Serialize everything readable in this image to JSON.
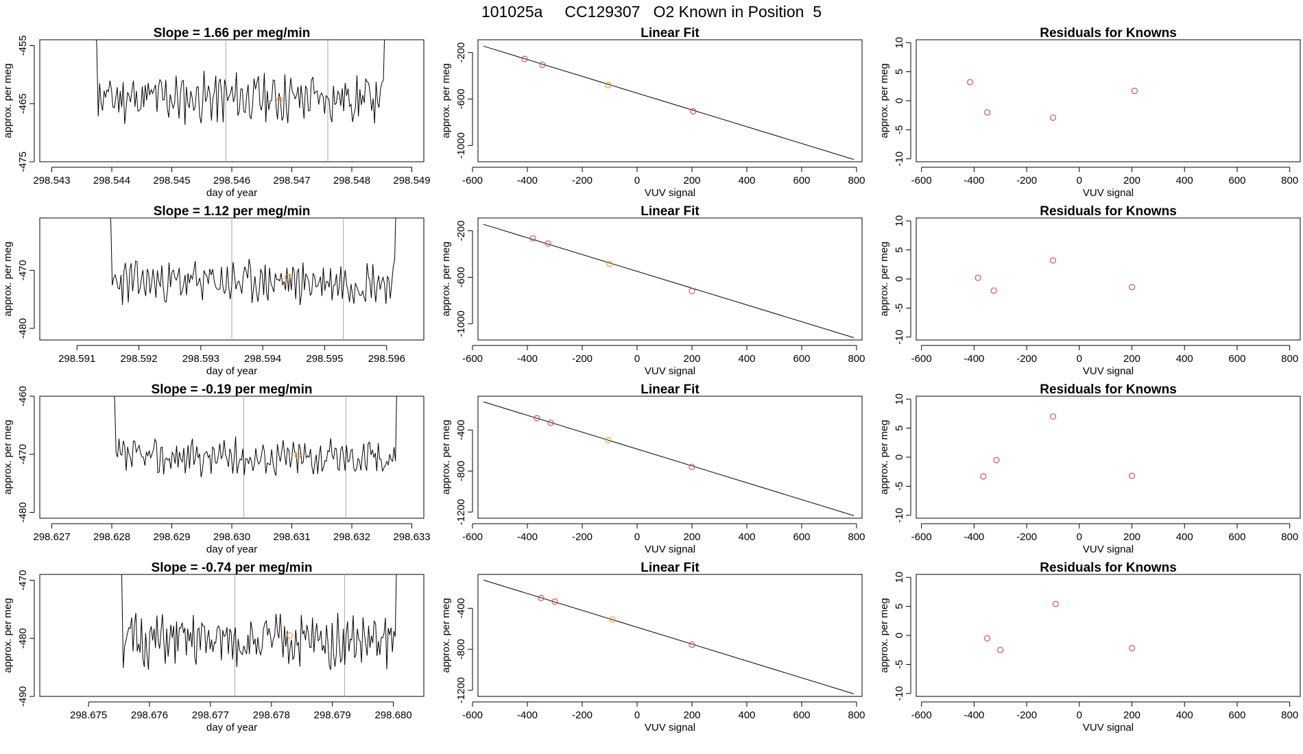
{
  "figure": {
    "title": "101025a     CC129307   O2 Known in Position  5"
  },
  "chart_data": [
    {
      "type": "line",
      "row": 1,
      "panel": "timeseries",
      "title": "Slope =  1.66  per meg/min",
      "xlabel": "day of year",
      "ylabel": "approx. per meg",
      "xlim": [
        298.5428,
        298.5492
      ],
      "ylim": [
        -475,
        -454
      ],
      "xticks": [
        298.543,
        298.544,
        298.545,
        298.546,
        298.547,
        298.548,
        298.549
      ],
      "xtick_labels": [
        "298.543",
        "298.544",
        "298.545",
        "298.546",
        "298.547",
        "298.548",
        "298.549"
      ],
      "yticks": [
        -455,
        -465,
        -475
      ],
      "ytick_labels": [
        "-455",
        "-465",
        "-475"
      ],
      "vlines": [
        298.5459,
        298.5476
      ],
      "x_start": 298.5437,
      "x_end": 298.5486,
      "center": -464,
      "amplitude": 3.5,
      "seed": 11,
      "marker": {
        "x": 298.5468,
        "y": -464.3
      }
    },
    {
      "type": "scatter",
      "row": 1,
      "panel": "fit",
      "title": "Linear Fit",
      "xlabel": "VUV signal",
      "ylabel": "approx. per meg",
      "xlim": [
        -580,
        820
      ],
      "ylim": [
        -1140,
        -90
      ],
      "xticks": [
        -600,
        -400,
        -200,
        0,
        200,
        400,
        600,
        800
      ],
      "xtick_labels": [
        "-600",
        "-400",
        "-200",
        "0",
        "200",
        "400",
        "600",
        "800"
      ],
      "yticks": [
        -200,
        -600,
        -1000
      ],
      "ytick_labels": [
        "-200",
        "-600",
        "-1000"
      ],
      "line": {
        "x": [
          -560,
          790
        ],
        "y": [
          -145,
          -1120
        ]
      },
      "points": [
        {
          "x": -410,
          "y": -255,
          "color": "#d9534f"
        },
        {
          "x": -345,
          "y": -305,
          "color": "#d9534f"
        },
        {
          "x": -105,
          "y": -480,
          "color": "#f0a030"
        },
        {
          "x": 205,
          "y": -705,
          "color": "#d9534f"
        }
      ]
    },
    {
      "type": "scatter",
      "row": 1,
      "panel": "residuals",
      "title": "Residuals for Knowns",
      "xlabel": "VUV signal",
      "ylabel": "approx. per meg",
      "xlim": [
        -620,
        840
      ],
      "ylim": [
        -10.5,
        10.5
      ],
      "xticks": [
        -600,
        -400,
        -200,
        0,
        200,
        400,
        600,
        800
      ],
      "xtick_labels": [
        "-600",
        "-400",
        "-200",
        "0",
        "200",
        "400",
        "600",
        "800"
      ],
      "yticks": [
        10,
        5,
        0,
        -5,
        -10
      ],
      "ytick_labels": [
        "10",
        "5",
        "0",
        "-5",
        "-10"
      ],
      "points": [
        {
          "x": -415,
          "y": 3.2,
          "color": "#d9534f"
        },
        {
          "x": -350,
          "y": -2.0,
          "color": "#d9534f"
        },
        {
          "x": -100,
          "y": -2.9,
          "color": "#d9534f"
        },
        {
          "x": 210,
          "y": 1.7,
          "color": "#d9534f"
        }
      ]
    },
    {
      "type": "line",
      "row": 2,
      "panel": "timeseries",
      "title": "Slope =  1.12  per meg/min",
      "xlabel": "day of year",
      "ylabel": "approx. per meg",
      "xlim": [
        298.5904,
        298.5966
      ],
      "ylim": [
        -482,
        -461
      ],
      "xticks": [
        298.591,
        298.592,
        298.593,
        298.594,
        298.595,
        298.596
      ],
      "xtick_labels": [
        "298.591",
        "298.592",
        "298.593",
        "298.594",
        "298.595",
        "298.596"
      ],
      "yticks": [
        -470,
        -480
      ],
      "ytick_labels": [
        "-470",
        "-480"
      ],
      "vlines": [
        298.5935,
        298.5953
      ],
      "x_start": 298.5915,
      "x_end": 298.5962,
      "center": -472,
      "amplitude": 3.0,
      "seed": 23,
      "marker": {
        "x": 298.5944,
        "y": -471.2
      }
    },
    {
      "type": "scatter",
      "row": 2,
      "panel": "fit",
      "title": "Linear Fit",
      "xlabel": "VUV signal",
      "ylabel": "approx. per meg",
      "xlim": [
        -580,
        820
      ],
      "ylim": [
        -1140,
        -90
      ],
      "xticks": [
        -600,
        -400,
        -200,
        0,
        200,
        400,
        600,
        800
      ],
      "xtick_labels": [
        "-600",
        "-400",
        "-200",
        "0",
        "200",
        "400",
        "600",
        "800"
      ],
      "yticks": [
        -200,
        -600,
        -1000
      ],
      "ytick_labels": [
        "-200",
        "-600",
        "-1000"
      ],
      "line": {
        "x": [
          -560,
          790
        ],
        "y": [
          -145,
          -1120
        ]
      },
      "points": [
        {
          "x": -380,
          "y": -265,
          "color": "#d9534f"
        },
        {
          "x": -325,
          "y": -310,
          "color": "#d9534f"
        },
        {
          "x": -100,
          "y": -485,
          "color": "#f0a030"
        },
        {
          "x": 200,
          "y": -720,
          "color": "#d9534f"
        }
      ]
    },
    {
      "type": "scatter",
      "row": 2,
      "panel": "residuals",
      "title": "Residuals for Knowns",
      "xlabel": "VUV signal",
      "ylabel": "approx. per meg",
      "xlim": [
        -620,
        840
      ],
      "ylim": [
        -10.5,
        10.5
      ],
      "xticks": [
        -600,
        -400,
        -200,
        0,
        200,
        400,
        600,
        800
      ],
      "xtick_labels": [
        "-600",
        "-400",
        "-200",
        "0",
        "200",
        "400",
        "600",
        "800"
      ],
      "yticks": [
        10,
        5,
        0,
        -5,
        -10
      ],
      "ytick_labels": [
        "10",
        "5",
        "0",
        "-5",
        "-10"
      ],
      "points": [
        {
          "x": -385,
          "y": 0.2,
          "color": "#d9534f"
        },
        {
          "x": -325,
          "y": -2.0,
          "color": "#d9534f"
        },
        {
          "x": -100,
          "y": 3.2,
          "color": "#d9534f"
        },
        {
          "x": 200,
          "y": -1.4,
          "color": "#d9534f"
        }
      ]
    },
    {
      "type": "line",
      "row": 3,
      "panel": "timeseries",
      "title": "Slope =  -0.19  per meg/min",
      "xlabel": "day of year",
      "ylabel": "approx. per meg",
      "xlim": [
        298.6268,
        298.6332
      ],
      "ylim": [
        -481,
        -460
      ],
      "xticks": [
        298.627,
        298.628,
        298.629,
        298.63,
        298.631,
        298.632,
        298.633
      ],
      "xtick_labels": [
        "298.627",
        "298.628",
        "298.629",
        "298.630",
        "298.631",
        "298.632",
        "298.633"
      ],
      "yticks": [
        -460,
        -470,
        -480
      ],
      "ytick_labels": [
        "-460",
        "-470",
        "-480"
      ],
      "vlines": [
        298.6302,
        298.6319
      ],
      "x_start": 298.628,
      "x_end": 298.6328,
      "center": -470.5,
      "amplitude": 2.6,
      "seed": 37,
      "marker": {
        "x": 298.6311,
        "y": -470.2
      }
    },
    {
      "type": "scatter",
      "row": 3,
      "panel": "fit",
      "title": "Linear Fit",
      "xlabel": "VUV signal",
      "ylabel": "approx. per meg",
      "xlim": [
        -580,
        820
      ],
      "ylim": [
        -1260,
        -70
      ],
      "xticks": [
        -600,
        -400,
        -200,
        0,
        200,
        400,
        600,
        800
      ],
      "xtick_labels": [
        "-600",
        "-400",
        "-200",
        "0",
        "200",
        "400",
        "600",
        "800"
      ],
      "yticks": [
        -400,
        -800,
        -1200
      ],
      "ytick_labels": [
        "-400",
        "-800",
        "-1200"
      ],
      "line": {
        "x": [
          -560,
          790
        ],
        "y": [
          -125,
          -1235
        ]
      },
      "points": [
        {
          "x": -365,
          "y": -285,
          "color": "#d9534f"
        },
        {
          "x": -315,
          "y": -330,
          "color": "#d9534f"
        },
        {
          "x": -105,
          "y": -500,
          "color": "#f0a030"
        },
        {
          "x": 200,
          "y": -760,
          "color": "#d9534f"
        }
      ]
    },
    {
      "type": "scatter",
      "row": 3,
      "panel": "residuals",
      "title": "Residuals for Knowns",
      "xlabel": "VUV signal",
      "ylabel": "approx. per meg",
      "xlim": [
        -620,
        840
      ],
      "ylim": [
        -10.5,
        10.5
      ],
      "xticks": [
        -600,
        -400,
        -200,
        0,
        200,
        400,
        600,
        800
      ],
      "xtick_labels": [
        "-600",
        "-400",
        "-200",
        "0",
        "200",
        "400",
        "600",
        "800"
      ],
      "yticks": [
        10,
        5,
        0,
        -5,
        -10
      ],
      "ytick_labels": [
        "10",
        "5",
        "0",
        "-5",
        "-10"
      ],
      "points": [
        {
          "x": -365,
          "y": -3.3,
          "color": "#d9534f"
        },
        {
          "x": -315,
          "y": -0.5,
          "color": "#d9534f"
        },
        {
          "x": -100,
          "y": 7.0,
          "color": "#d9534f"
        },
        {
          "x": 200,
          "y": -3.2,
          "color": "#d9534f"
        }
      ]
    },
    {
      "type": "line",
      "row": 4,
      "panel": "timeseries",
      "title": "Slope =  -0.74  per meg/min",
      "xlabel": "day of year",
      "ylabel": "approx. per meg",
      "xlim": [
        298.6742,
        298.6805
      ],
      "ylim": [
        -490,
        -469
      ],
      "xticks": [
        298.675,
        298.676,
        298.677,
        298.678,
        298.679,
        298.68
      ],
      "xtick_labels": [
        "298.675",
        "298.676",
        "298.677",
        "298.678",
        "298.679",
        "298.680"
      ],
      "yticks": [
        -470,
        -480,
        -490
      ],
      "ytick_labels": [
        "-470",
        "-480",
        "-490"
      ],
      "vlines": [
        298.6774,
        298.6792
      ],
      "x_start": 298.6755,
      "x_end": 298.6801,
      "center": -480.5,
      "amplitude": 3.8,
      "seed": 51,
      "marker": {
        "x": 298.6783,
        "y": -479.5
      }
    },
    {
      "type": "scatter",
      "row": 4,
      "panel": "fit",
      "title": "Linear Fit",
      "xlabel": "VUV signal",
      "ylabel": "approx. per meg",
      "xlim": [
        -580,
        820
      ],
      "ylim": [
        -1260,
        -70
      ],
      "xticks": [
        -600,
        -400,
        -200,
        0,
        200,
        400,
        600,
        800
      ],
      "xtick_labels": [
        "-600",
        "-400",
        "-200",
        "0",
        "200",
        "400",
        "600",
        "800"
      ],
      "yticks": [
        -400,
        -800,
        -1200
      ],
      "ytick_labels": [
        "-400",
        "-800",
        "-1200"
      ],
      "line": {
        "x": [
          -560,
          790
        ],
        "y": [
          -125,
          -1235
        ]
      },
      "points": [
        {
          "x": -350,
          "y": -300,
          "color": "#d9534f"
        },
        {
          "x": -300,
          "y": -335,
          "color": "#d9534f"
        },
        {
          "x": -90,
          "y": -510,
          "color": "#f0a030"
        },
        {
          "x": 200,
          "y": -755,
          "color": "#d9534f"
        }
      ]
    },
    {
      "type": "scatter",
      "row": 4,
      "panel": "residuals",
      "title": "Residuals for Knowns",
      "xlabel": "VUV signal",
      "ylabel": "approx. per meg",
      "xlim": [
        -620,
        840
      ],
      "ylim": [
        -10.5,
        10.5
      ],
      "xticks": [
        -600,
        -400,
        -200,
        0,
        200,
        400,
        600,
        800
      ],
      "xtick_labels": [
        "-600",
        "-400",
        "-200",
        "0",
        "200",
        "400",
        "600",
        "800"
      ],
      "yticks": [
        10,
        5,
        0,
        -5,
        -10
      ],
      "ytick_labels": [
        "10",
        "5",
        "0",
        "-5",
        "-10"
      ],
      "points": [
        {
          "x": -350,
          "y": -0.5,
          "color": "#d9534f"
        },
        {
          "x": -300,
          "y": -2.5,
          "color": "#d9534f"
        },
        {
          "x": -90,
          "y": 5.4,
          "color": "#d9534f"
        },
        {
          "x": 200,
          "y": -2.2,
          "color": "#d9534f"
        }
      ]
    }
  ]
}
